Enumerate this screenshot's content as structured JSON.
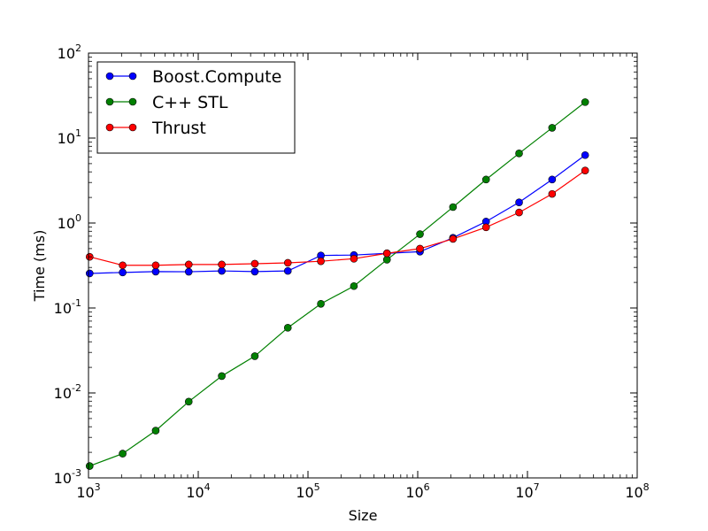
{
  "chart_data": {
    "type": "line",
    "title": "",
    "xlabel": "Size",
    "ylabel": "Time (ms)",
    "xscale": "log",
    "yscale": "log",
    "xlim": [
      1000,
      100000000
    ],
    "ylim": [
      0.001,
      100
    ],
    "x_ticks": [
      {
        "base": "10",
        "exp": "3",
        "value": 1000
      },
      {
        "base": "10",
        "exp": "4",
        "value": 10000
      },
      {
        "base": "10",
        "exp": "5",
        "value": 100000
      },
      {
        "base": "10",
        "exp": "6",
        "value": 1000000
      },
      {
        "base": "10",
        "exp": "7",
        "value": 10000000
      },
      {
        "base": "10",
        "exp": "8",
        "value": 100000000
      }
    ],
    "y_ticks": [
      {
        "base": "10",
        "exp": "-3",
        "value": 0.001
      },
      {
        "base": "10",
        "exp": "-2",
        "value": 0.01
      },
      {
        "base": "10",
        "exp": "-1",
        "value": 0.1
      },
      {
        "base": "10",
        "exp": "0",
        "value": 1
      },
      {
        "base": "10",
        "exp": "1",
        "value": 10
      },
      {
        "base": "10",
        "exp": "2",
        "value": 100
      }
    ],
    "grid": false,
    "legend_position": "top-left",
    "x": [
      1024,
      2048,
      4096,
      8192,
      16384,
      32768,
      65536,
      131072,
      262144,
      524288,
      1048576,
      2097152,
      4194304,
      8388608,
      16777216,
      33554432
    ],
    "series": [
      {
        "name": "Boost.Compute",
        "color": "#0000ff",
        "values": [
          0.255,
          0.262,
          0.268,
          0.267,
          0.273,
          0.268,
          0.273,
          0.415,
          0.42,
          0.44,
          0.46,
          0.67,
          1.04,
          1.75,
          3.25,
          6.3
        ]
      },
      {
        "name": "C++ STL",
        "color": "#008000",
        "values": [
          0.00138,
          0.00193,
          0.0036,
          0.0079,
          0.0158,
          0.0271,
          0.0585,
          0.112,
          0.181,
          0.37,
          0.74,
          1.54,
          3.25,
          6.6,
          13.2,
          26.5
        ]
      },
      {
        "name": "Thrust",
        "color": "#ff0000",
        "values": [
          0.4,
          0.318,
          0.318,
          0.325,
          0.325,
          0.332,
          0.34,
          0.355,
          0.38,
          0.44,
          0.5,
          0.65,
          0.89,
          1.33,
          2.2,
          4.15
        ]
      }
    ]
  }
}
